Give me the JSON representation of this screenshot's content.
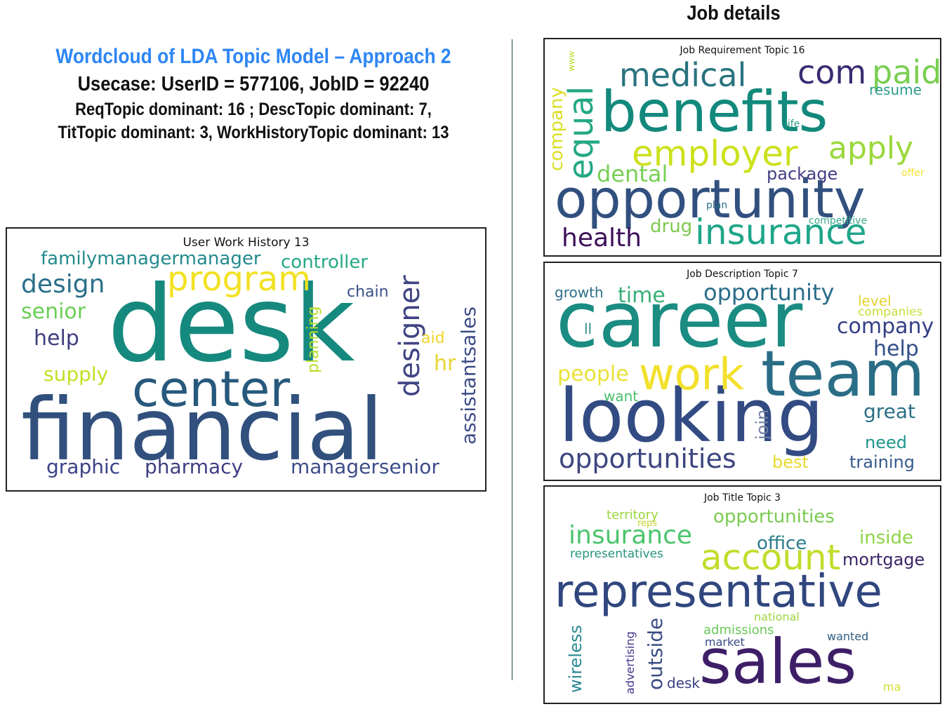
{
  "header": {
    "title": "Wordcloud of LDA Topic Model – Approach 2",
    "usecase": "Usecase: UserID = 577106, JobID = 92240",
    "dominant_line1": "ReqTopic dominant: 16 ; DescTopic dominant: 7,",
    "dominant_line2": "TitTopic dominant: 3, WorkHistoryTopic dominant: 13",
    "title_color": "#2e86f5"
  },
  "job_details_heading": "Job details",
  "clouds": {
    "work_history": {
      "title": "User Work History 13",
      "words": [
        "desk",
        "financial",
        "center",
        "program",
        "designer",
        "design",
        "familymanagermanager",
        "controller",
        "senior",
        "help",
        "chain",
        "assistantsales",
        "supply",
        "planning",
        "aid",
        "hr",
        "graphic",
        "pharmacy",
        "managersenior"
      ]
    },
    "requirement": {
      "title": "Job Requirement Topic 16",
      "words": [
        "benefits",
        "opportunity",
        "employer",
        "equal",
        "medical",
        "com",
        "paid",
        "resume",
        "apply",
        "company",
        "dental",
        "package",
        "life",
        "offer",
        "insurance",
        "health",
        "drug",
        "plan",
        "competitive",
        "www"
      ]
    },
    "description": {
      "title": "Job Description Topic 7",
      "words": [
        "career",
        "looking",
        "team",
        "work",
        "opportunity",
        "opportunities",
        "company",
        "help",
        "people",
        "time",
        "growth",
        "ll",
        "level",
        "companies",
        "want",
        "join",
        "great",
        "need",
        "best",
        "training"
      ]
    },
    "title_topic": {
      "title": "Job Title Topic 3",
      "words": [
        "representative",
        "sales",
        "account",
        "insurance",
        "opportunities",
        "office",
        "inside",
        "mortgage",
        "territory",
        "reps",
        "representatives",
        "outside",
        "wireless",
        "advertising",
        "national",
        "admissions",
        "market",
        "wanted",
        "desk",
        "ma"
      ]
    }
  },
  "palette": [
    "#440154",
    "#414487",
    "#2a788e",
    "#22a884",
    "#7ad151",
    "#fde725"
  ]
}
